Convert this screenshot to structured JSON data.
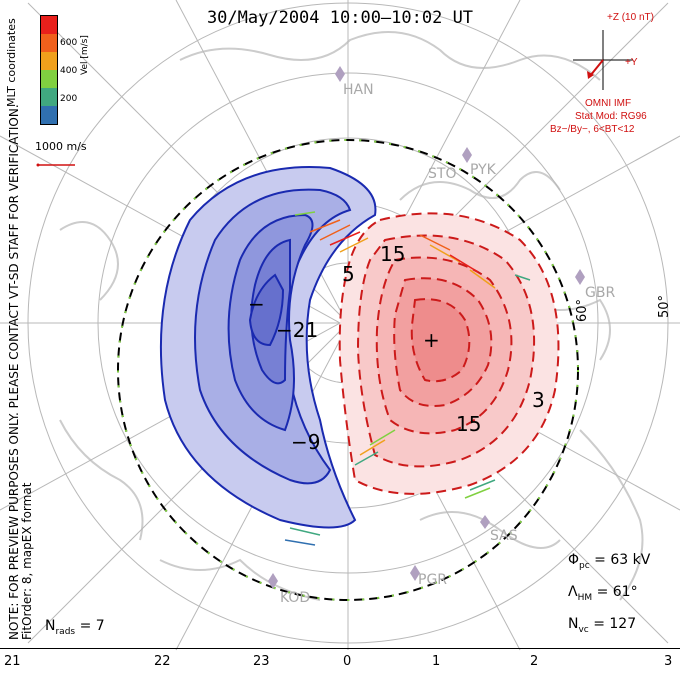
{
  "title": "30/May/2004  10:00–10:02 UT",
  "note": "NOTE: FOR PREVIEW PURPOSES ONLY. PLEASE CONTACT VT-SD STAFF FOR VERIFICATION.",
  "fit_order": "FitOrder: 8, mapEX format",
  "coords": "MLT coordinates",
  "colorbar": {
    "title": "Vel [m/s]",
    "ticks": [
      "600",
      "400",
      "200"
    ],
    "colors": [
      "#e8201c",
      "#f0601c",
      "#f0a01c",
      "#80d040",
      "#40a880",
      "#3070b0",
      "#2020e0"
    ]
  },
  "vector_ref": "1000 m/s",
  "imf": {
    "z_label": "+Z (10 nT)",
    "y_label": "+Y",
    "source": "OMNI IMF",
    "stat_mod": "Stat Mod: RG96",
    "condition": "Bz−/By−, 6<BT<12"
  },
  "stats": {
    "phi_pc_sym": "Φ",
    "phi_pc_sub": "pc",
    "phi_pc_val": "= 63 kV",
    "lambda_sym": "Λ",
    "lambda_sub": "HM",
    "lambda_val": "= 61°",
    "nvc_sym": "N",
    "nvc_sub": "vc",
    "nvc_val": "= 127",
    "nrads_sym": "N",
    "nrads_sub": "rads",
    "nrads_val": "= 7"
  },
  "hours": [
    "21",
    "22",
    "23",
    "0",
    "1",
    "2",
    "3"
  ],
  "latitudes": [
    "60°",
    "50°"
  ],
  "stations": [
    "HAN",
    "STO",
    "PYK",
    "GBR",
    "SAS",
    "PGR",
    "KOD"
  ],
  "contour_labels": [
    "−21",
    "−9",
    "−",
    "15",
    "5",
    "15",
    "3",
    "+"
  ],
  "colors": {
    "negative": "#1a2ab0",
    "negative_fill": "#c8cbef",
    "positive": "#cc1a1a",
    "positive_fill": "#f6b6b6",
    "grid": "#b8b8b8",
    "coast": "#cccccc"
  }
}
